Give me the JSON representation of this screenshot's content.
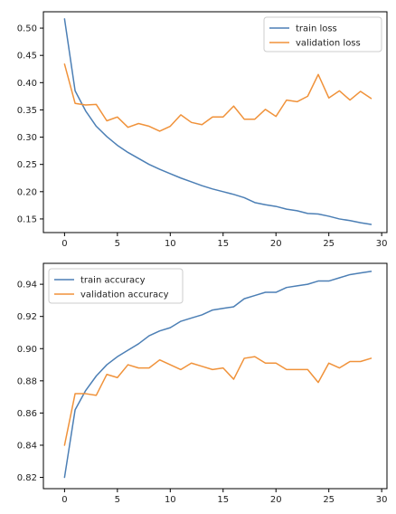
{
  "colors": {
    "train": "#4c7fb5",
    "validation": "#f0923a"
  },
  "chart_data": [
    {
      "type": "line",
      "x": [
        0,
        1,
        2,
        3,
        4,
        5,
        6,
        7,
        8,
        9,
        10,
        11,
        12,
        13,
        14,
        15,
        16,
        17,
        18,
        19,
        20,
        21,
        22,
        23,
        24,
        25,
        26,
        27,
        28,
        29
      ],
      "xlim": [
        -2,
        30.5
      ],
      "ylim": [
        0.125,
        0.53
      ],
      "xticks": [
        0,
        5,
        10,
        15,
        20,
        25,
        30
      ],
      "yticks": [
        0.15,
        0.2,
        0.25,
        0.3,
        0.35,
        0.4,
        0.45,
        0.5
      ],
      "xtick_labels": [
        "0",
        "5",
        "10",
        "15",
        "20",
        "25",
        "30"
      ],
      "ytick_labels": [
        "0.15",
        "0.20",
        "0.25",
        "0.30",
        "0.35",
        "0.40",
        "0.45",
        "0.50"
      ],
      "grid": false,
      "legend_position": "top-right",
      "series": [
        {
          "name": "train loss",
          "color": "#4c7fb5",
          "values": [
            0.517,
            0.385,
            0.348,
            0.32,
            0.301,
            0.285,
            0.272,
            0.261,
            0.25,
            0.241,
            0.233,
            0.225,
            0.218,
            0.211,
            0.205,
            0.2,
            0.195,
            0.189,
            0.18,
            0.176,
            0.173,
            0.168,
            0.165,
            0.16,
            0.159,
            0.155,
            0.15,
            0.147,
            0.143,
            0.14
          ]
        },
        {
          "name": "validation loss",
          "color": "#f0923a",
          "values": [
            0.434,
            0.362,
            0.359,
            0.36,
            0.33,
            0.337,
            0.318,
            0.325,
            0.32,
            0.311,
            0.32,
            0.341,
            0.327,
            0.323,
            0.337,
            0.337,
            0.357,
            0.333,
            0.333,
            0.351,
            0.338,
            0.368,
            0.365,
            0.375,
            0.415,
            0.372,
            0.385,
            0.368,
            0.384,
            0.371
          ]
        }
      ]
    },
    {
      "type": "line",
      "x": [
        0,
        1,
        2,
        3,
        4,
        5,
        6,
        7,
        8,
        9,
        10,
        11,
        12,
        13,
        14,
        15,
        16,
        17,
        18,
        19,
        20,
        21,
        22,
        23,
        24,
        25,
        26,
        27,
        28,
        29
      ],
      "xlim": [
        -2,
        30.5
      ],
      "ylim": [
        0.813,
        0.953
      ],
      "xticks": [
        0,
        5,
        10,
        15,
        20,
        25,
        30
      ],
      "yticks": [
        0.82,
        0.84,
        0.86,
        0.88,
        0.9,
        0.92,
        0.94
      ],
      "xtick_labels": [
        "0",
        "5",
        "10",
        "15",
        "20",
        "25",
        "30"
      ],
      "ytick_labels": [
        "0.82",
        "0.84",
        "0.86",
        "0.88",
        "0.90",
        "0.92",
        "0.94"
      ],
      "grid": false,
      "legend_position": "top-left",
      "series": [
        {
          "name": "train accuracy",
          "color": "#4c7fb5",
          "values": [
            0.82,
            0.862,
            0.874,
            0.883,
            0.89,
            0.895,
            0.899,
            0.903,
            0.908,
            0.911,
            0.913,
            0.917,
            0.919,
            0.921,
            0.924,
            0.925,
            0.926,
            0.931,
            0.933,
            0.935,
            0.935,
            0.938,
            0.939,
            0.94,
            0.942,
            0.942,
            0.944,
            0.946,
            0.947,
            0.948
          ]
        },
        {
          "name": "validation accuracy",
          "color": "#f0923a",
          "values": [
            0.84,
            0.872,
            0.872,
            0.871,
            0.884,
            0.882,
            0.89,
            0.888,
            0.888,
            0.893,
            0.89,
            0.887,
            0.891,
            0.889,
            0.887,
            0.888,
            0.881,
            0.894,
            0.895,
            0.891,
            0.891,
            0.887,
            0.887,
            0.887,
            0.879,
            0.891,
            0.888,
            0.892,
            0.892,
            0.894
          ]
        }
      ]
    }
  ]
}
